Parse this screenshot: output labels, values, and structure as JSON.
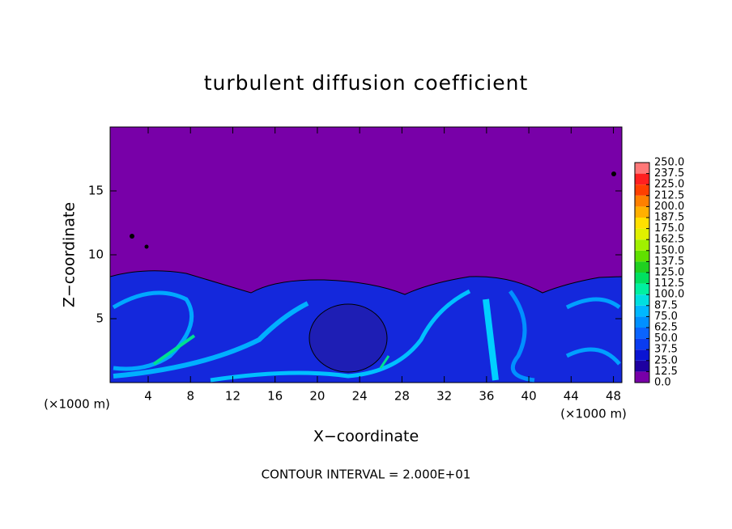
{
  "chart_data": {
    "type": "contour",
    "title": "turbulent diffusion coefficient",
    "x_label": "X−coordinate",
    "y_label": "Z−coordinate",
    "y_unit": "(×1000 m)",
    "x_unit": "(×1000 m)",
    "footnote": "CONTOUR INTERVAL = 2.000E+01",
    "xlim": [
      0.4,
      48.8
    ],
    "xticks": [
      4,
      8,
      12,
      16,
      20,
      24,
      28,
      32,
      36,
      40,
      44,
      48
    ],
    "ylim": [
      0,
      20
    ],
    "yticks": [
      5,
      10,
      15
    ],
    "colorbar": {
      "levels": [
        {
          "value": 0,
          "label": "0.0"
        },
        12.5,
        {
          "value": 25,
          "label": "25.0"
        },
        37.5,
        {
          "value": 50,
          "label": "50.0"
        },
        62.5,
        {
          "value": 75,
          "label": "75.0"
        },
        87.5,
        {
          "value": 100,
          "label": "100.0"
        },
        112.5,
        {
          "value": 125,
          "label": "125.0"
        },
        137.5,
        {
          "value": 150,
          "label": "150.0"
        },
        162.5,
        {
          "value": 175,
          "label": "175.0"
        },
        187.5,
        {
          "value": 200,
          "label": "200.0"
        },
        212.5,
        {
          "value": 225,
          "label": "225.0"
        },
        237.5,
        {
          "value": 250,
          "label": "250.0"
        }
      ],
      "colors": [
        "#7800a8",
        "#1e00a0",
        "#0a14d2",
        "#0a3cf0",
        "#0a64ff",
        "#0090ff",
        "#00b8ff",
        "#00e0e0",
        "#00f0a0",
        "#00e060",
        "#20d020",
        "#60e000",
        "#a0f000",
        "#e0f000",
        "#ffe000",
        "#ffb000",
        "#ff8000",
        "#ff4000",
        "#ff2020",
        "#ff7878"
      ]
    }
  }
}
